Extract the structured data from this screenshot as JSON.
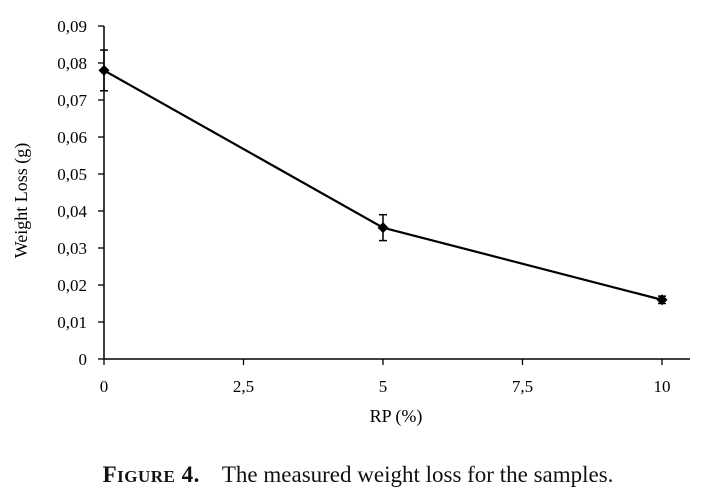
{
  "chart_data": {
    "type": "line",
    "x": [
      0,
      5,
      10
    ],
    "series": [
      {
        "values": [
          0.078,
          0.0355,
          0.016
        ],
        "error": [
          0.0055,
          0.0035,
          0.001
        ]
      }
    ],
    "xlabel": "RP (%)",
    "ylabel": "Weight Loss (g)",
    "xlim": [
      0,
      10
    ],
    "ylim": [
      0,
      0.09
    ],
    "xticks": [
      "0",
      "2,5",
      "5",
      "7,5",
      "10"
    ],
    "yticks": [
      "0",
      "0,01",
      "0,02",
      "0,03",
      "0,04",
      "0,05",
      "0,06",
      "0,07",
      "0,08",
      "0,09"
    ],
    "xtick_values": [
      0,
      2.5,
      5,
      7.5,
      10
    ],
    "ytick_values": [
      0,
      0.01,
      0.02,
      0.03,
      0.04,
      0.05,
      0.06,
      0.07,
      0.08,
      0.09
    ],
    "grid": false,
    "marker": "diamond",
    "color": "#000000"
  },
  "caption": {
    "label_first": "F",
    "label_rest": "IGURE",
    "label_num": "4.",
    "text": "The measured weight loss for the samples."
  }
}
